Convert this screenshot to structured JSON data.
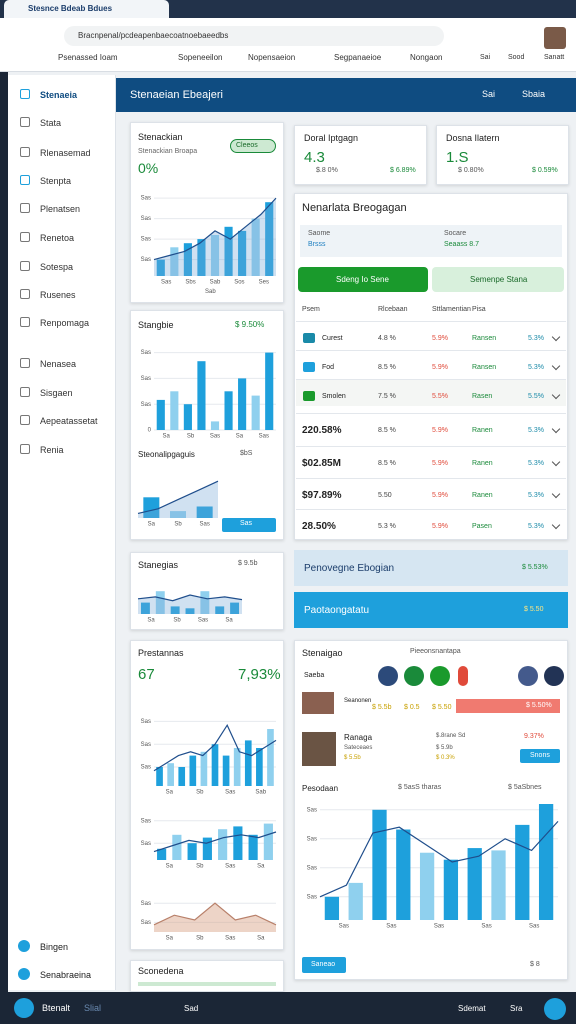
{
  "browser": {
    "tab_title": "Stesnce Bdeab Bdues",
    "url": "Bracnpenal/pcdeapenbaecoatnoebaeedbs",
    "bookmarks": [
      "Psenassed Ioam",
      "Sopeneeilon",
      "Nopensaeion",
      "Segpanaeioe",
      "Nongaon"
    ],
    "toolbar_labels": [
      "Sai",
      "Sood",
      "Sanatt"
    ]
  },
  "sidebar": {
    "items": [
      "Stenaeia",
      "Stata",
      "Rlenasemad",
      "Stenpta",
      "Plenatsen",
      "Renetoa",
      "Sotespa",
      "Rusenes",
      "Renpomaga",
      "Nenasea",
      "Sisgaen",
      "Aepeatassetat",
      "Renia"
    ],
    "footer": [
      "Bingen",
      "Senabraeina"
    ]
  },
  "header": {
    "title": "Stenaeian Ebeajeri",
    "right": [
      "Sai",
      "Sbaia"
    ]
  },
  "cards": {
    "c1": {
      "title": "Stenackian",
      "subtitle": "Stenackian Broapa",
      "value": "0%",
      "toggle": "Cleeos",
      "chart": {
        "ylim": [
          0,
          100
        ],
        "yticks": [
          {
            "value": 20,
            "label": "Sas"
          },
          {
            "value": 45,
            "label": "Sas"
          },
          {
            "value": 70,
            "label": "Sas"
          },
          {
            "value": 95,
            "label": "Sas"
          }
        ],
        "xticks": [
          "Sas",
          "Sbs",
          "Sab",
          "Sos",
          "Ses"
        ],
        "values": [
          20,
          35,
          40,
          45,
          50,
          60,
          55,
          70,
          90
        ],
        "line": [
          20,
          25,
          30,
          40,
          55,
          45,
          60,
          75,
          95
        ],
        "area": true,
        "footer": "Sab"
      }
    },
    "c2": {
      "title": "Stangbie",
      "value": "$ 9.50%",
      "chart": {
        "ylim": [
          0,
          100
        ],
        "yticks": [
          {
            "value": 0,
            "label": "0"
          },
          {
            "value": 30,
            "label": "Sas"
          },
          {
            "value": 60,
            "label": "Sas"
          },
          {
            "value": 90,
            "label": "Sas"
          }
        ],
        "xticks": [
          "Sa",
          "Sb",
          "Sas",
          "Sa",
          "Sas"
        ],
        "values": [
          35,
          45,
          30,
          80,
          10,
          45,
          60,
          40,
          90
        ]
      },
      "sub_title": "Steonalipgaguis",
      "sub_value": "$bS",
      "sub_chart": {
        "ylim": [
          0,
          100
        ],
        "xticks": [
          "Sa",
          "Sb",
          "Sas"
        ],
        "values": [
          45,
          15,
          25
        ],
        "line": [
          10,
          20,
          40,
          60,
          80
        ],
        "area": true,
        "button": "Sas"
      }
    },
    "c3": {
      "title": "Stanegias",
      "value": "$ 9.5b",
      "chart": {
        "ylim": [
          0,
          100
        ],
        "xticks": [
          "Sa",
          "Sb",
          "Sas",
          "Sa"
        ],
        "values": [
          30,
          60,
          20,
          15,
          60,
          20,
          30
        ],
        "line": [
          40,
          45,
          35,
          50,
          40,
          45,
          38
        ],
        "area": true
      }
    },
    "c4": {
      "title": "Prestannas",
      "value": "67",
      "value2": "7,93%",
      "chart": {
        "ylim": [
          0,
          100
        ],
        "yticks": [
          {
            "value": 25,
            "label": "Sas"
          },
          {
            "value": 55,
            "label": "Sas"
          },
          {
            "value": 85,
            "label": "Sas"
          }
        ],
        "xticks": [
          "Sa",
          "Sb",
          "Sas",
          "Sab"
        ],
        "values": [
          25,
          30,
          25,
          40,
          45,
          55,
          40,
          50,
          60,
          50,
          75
        ],
        "line": [
          20,
          30,
          40,
          45,
          40,
          55,
          80,
          45,
          40,
          50,
          60
        ]
      },
      "chart2": {
        "ylim": [
          0,
          100
        ],
        "yticks": [
          {
            "value": 30,
            "label": "Sas"
          },
          {
            "value": 70,
            "label": "Sas"
          }
        ],
        "xticks": [
          "Sa",
          "Sb",
          "Sas",
          "Sa"
        ],
        "values": [
          20,
          45,
          30,
          40,
          55,
          60,
          45,
          65
        ],
        "line": [
          15,
          25,
          35,
          30,
          40,
          45,
          40,
          50
        ]
      },
      "chart3": {
        "ylim": [
          0,
          100
        ],
        "yticks": [
          {
            "value": 20,
            "label": "Sas"
          },
          {
            "value": 60,
            "label": "Sas"
          }
        ],
        "xticks": [
          "Sa",
          "Sb",
          "Sas",
          "Sa"
        ],
        "values": [],
        "line": [
          15,
          35,
          25,
          60,
          25,
          35,
          15
        ],
        "area": true
      }
    },
    "c5": {
      "title": "Sconedena"
    }
  },
  "kpis": [
    {
      "title": "Doral Iptgagn",
      "value": "4.3",
      "a": "$.8 0%",
      "b": "$ 6.89%"
    },
    {
      "title": "Dosna Ilatern",
      "value": "1.S",
      "a": "$ 0.80%",
      "b": "$ 0.59%"
    }
  ],
  "panel": {
    "title": "Nenarlata Breogagan",
    "stat_labels": [
      "Saome",
      "Socare"
    ],
    "stat_values": [
      "Brsss",
      "Seaass 8.7"
    ],
    "buttons": [
      "Sdeng Io Sene",
      "Semenpe Stana"
    ],
    "columns": [
      "Psem",
      "Rlcebaan",
      "Sttlamentian",
      "Pisa"
    ],
    "rows": [
      [
        "Curest",
        "4.8 %",
        "5.9%",
        "Ransen",
        "5.3%"
      ],
      [
        "Fod",
        "8.5 %",
        "5.9%",
        "Ransen",
        "5.3%"
      ],
      [
        "Smolen",
        "7.5 %",
        "5.5%",
        "Rasen",
        "5.5%"
      ],
      [
        "220.58%",
        "8.5 %",
        "5.9%",
        "Ranen",
        "5.3%"
      ],
      [
        "$02.85M",
        "8.5 %",
        "5.9%",
        "Ranen",
        "5.3%"
      ],
      [
        "$97.89%",
        "5.50",
        "5.9%",
        "Ranen",
        "5.3%"
      ],
      [
        "28.50%",
        "5.3 %",
        "5.9%",
        "Pasen",
        "5.3%"
      ]
    ]
  },
  "banners": [
    {
      "title": "Penovegne Ebogian",
      "value": "$ 5.53%"
    },
    {
      "title": "Paotaongatatu",
      "value": "$ 5.50"
    }
  ],
  "lower": {
    "title": "Stenaigao",
    "subtitle": "Pieeonsnantapa",
    "label": "Saeba",
    "row1": [
      "Seanonen",
      "$ 5.5b",
      "$ 0.5",
      "$ 5.50",
      "$ 5.50%"
    ],
    "row2": {
      "name": "Ranaga",
      "sub": "Sateceaes",
      "a": "$ 5.5b",
      "b": "$ 5.9b",
      "c": "$ 0.3%",
      "d": "$.8rane Sd",
      "e": "9.37%",
      "button": "Snons"
    },
    "chart_title": "Pesodaan",
    "chart_mid": "$ 5asS tharas",
    "chart_right": "$ 5aSbnes",
    "chart": {
      "ylim": [
        0,
        100
      ],
      "yticks": [
        {
          "value": 20,
          "label": "Sas"
        },
        {
          "value": 45,
          "label": "Sas"
        },
        {
          "value": 70,
          "label": "Sas"
        },
        {
          "value": 95,
          "label": "Sas"
        }
      ],
      "xticks": [
        "Sas",
        "Sas",
        "Sas",
        "Sas",
        "Sas"
      ],
      "values": [
        20,
        32,
        95,
        78,
        58,
        52,
        62,
        60,
        82,
        100
      ],
      "line": [
        20,
        30,
        75,
        80,
        65,
        50,
        55,
        70,
        60,
        85
      ]
    },
    "footer_button": "Saneao",
    "footer_value": "$ 8"
  },
  "taskbar": {
    "left": "Btenalt",
    "left2": "Slial",
    "items": [
      "Sad",
      "Sdemat",
      "Sra"
    ]
  }
}
